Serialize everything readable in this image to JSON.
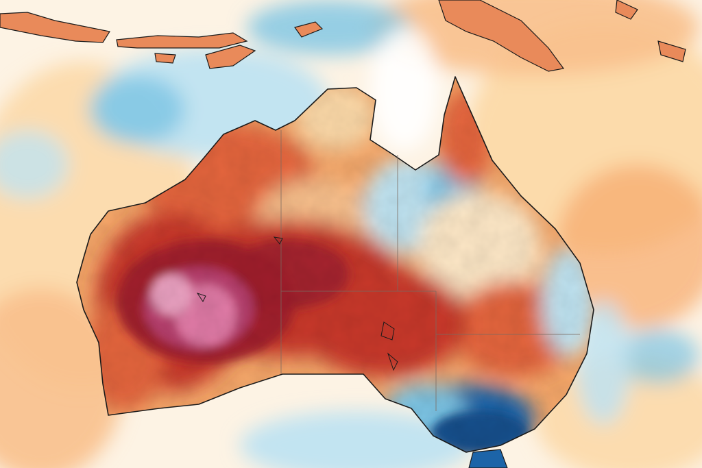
{
  "map": {
    "kind": "temperature-anomaly-heatmap",
    "region": "Australia",
    "labels_visible": false,
    "palette": {
      "ocean_neutral": "#fdf3e4",
      "light_blue": "#bfe3f1",
      "blue": "#7cc4e4",
      "deep_blue": "#1c64a8",
      "pale_orange": "#fcd9a8",
      "orange": "#f6a86a",
      "red_orange": "#e4653d",
      "red": "#c8392c",
      "dark_red": "#9e1f2d",
      "magenta": "#b8406e",
      "pink": "#e07aa6",
      "coastline": "#1a1a1a",
      "state_border": "#7a6a60"
    }
  }
}
